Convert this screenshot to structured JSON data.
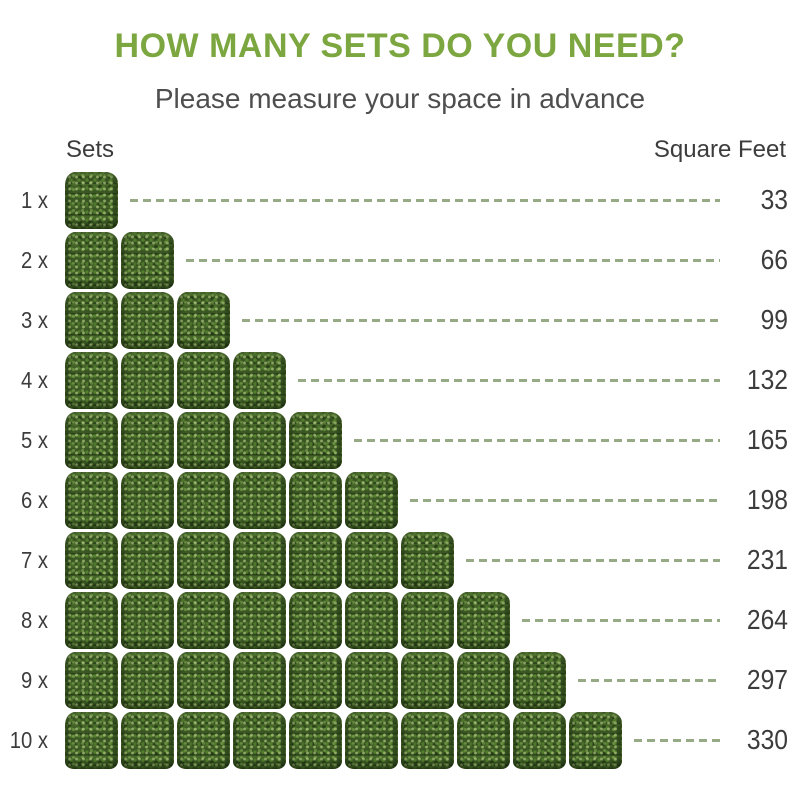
{
  "page": {
    "title": "HOW MANY SETS DO YOU NEED?",
    "subtitle": "Please measure your space in advance",
    "col_left": "Sets",
    "col_right": "Square Feet"
  },
  "colors": {
    "title_green": "#7CA63F",
    "dash_green": "#96AA86",
    "text_dark": "#3C3C3C",
    "subtitle_gray": "#4E4E4E",
    "hedge_green": "#3E5B26"
  },
  "chart_data": {
    "type": "pictograph-bar",
    "title": "HOW MANY SETS DO YOU NEED?",
    "subtitle": "Please measure your space in advance",
    "icon": "hedge-panel-set",
    "unit_label_left": "Sets",
    "unit_label_right": "Square Feet",
    "sqft_per_set": 33,
    "categories": [
      "1 x",
      "2 x",
      "3 x",
      "4 x",
      "5 x",
      "6 x",
      "7 x",
      "8 x",
      "9 x",
      "10 x"
    ],
    "icon_counts": [
      1,
      2,
      3,
      4,
      5,
      6,
      7,
      8,
      9,
      10
    ],
    "values": [
      33,
      66,
      99,
      132,
      165,
      198,
      231,
      264,
      297,
      330
    ],
    "connector_style": "dashed",
    "legend": "none",
    "grid": "off"
  }
}
